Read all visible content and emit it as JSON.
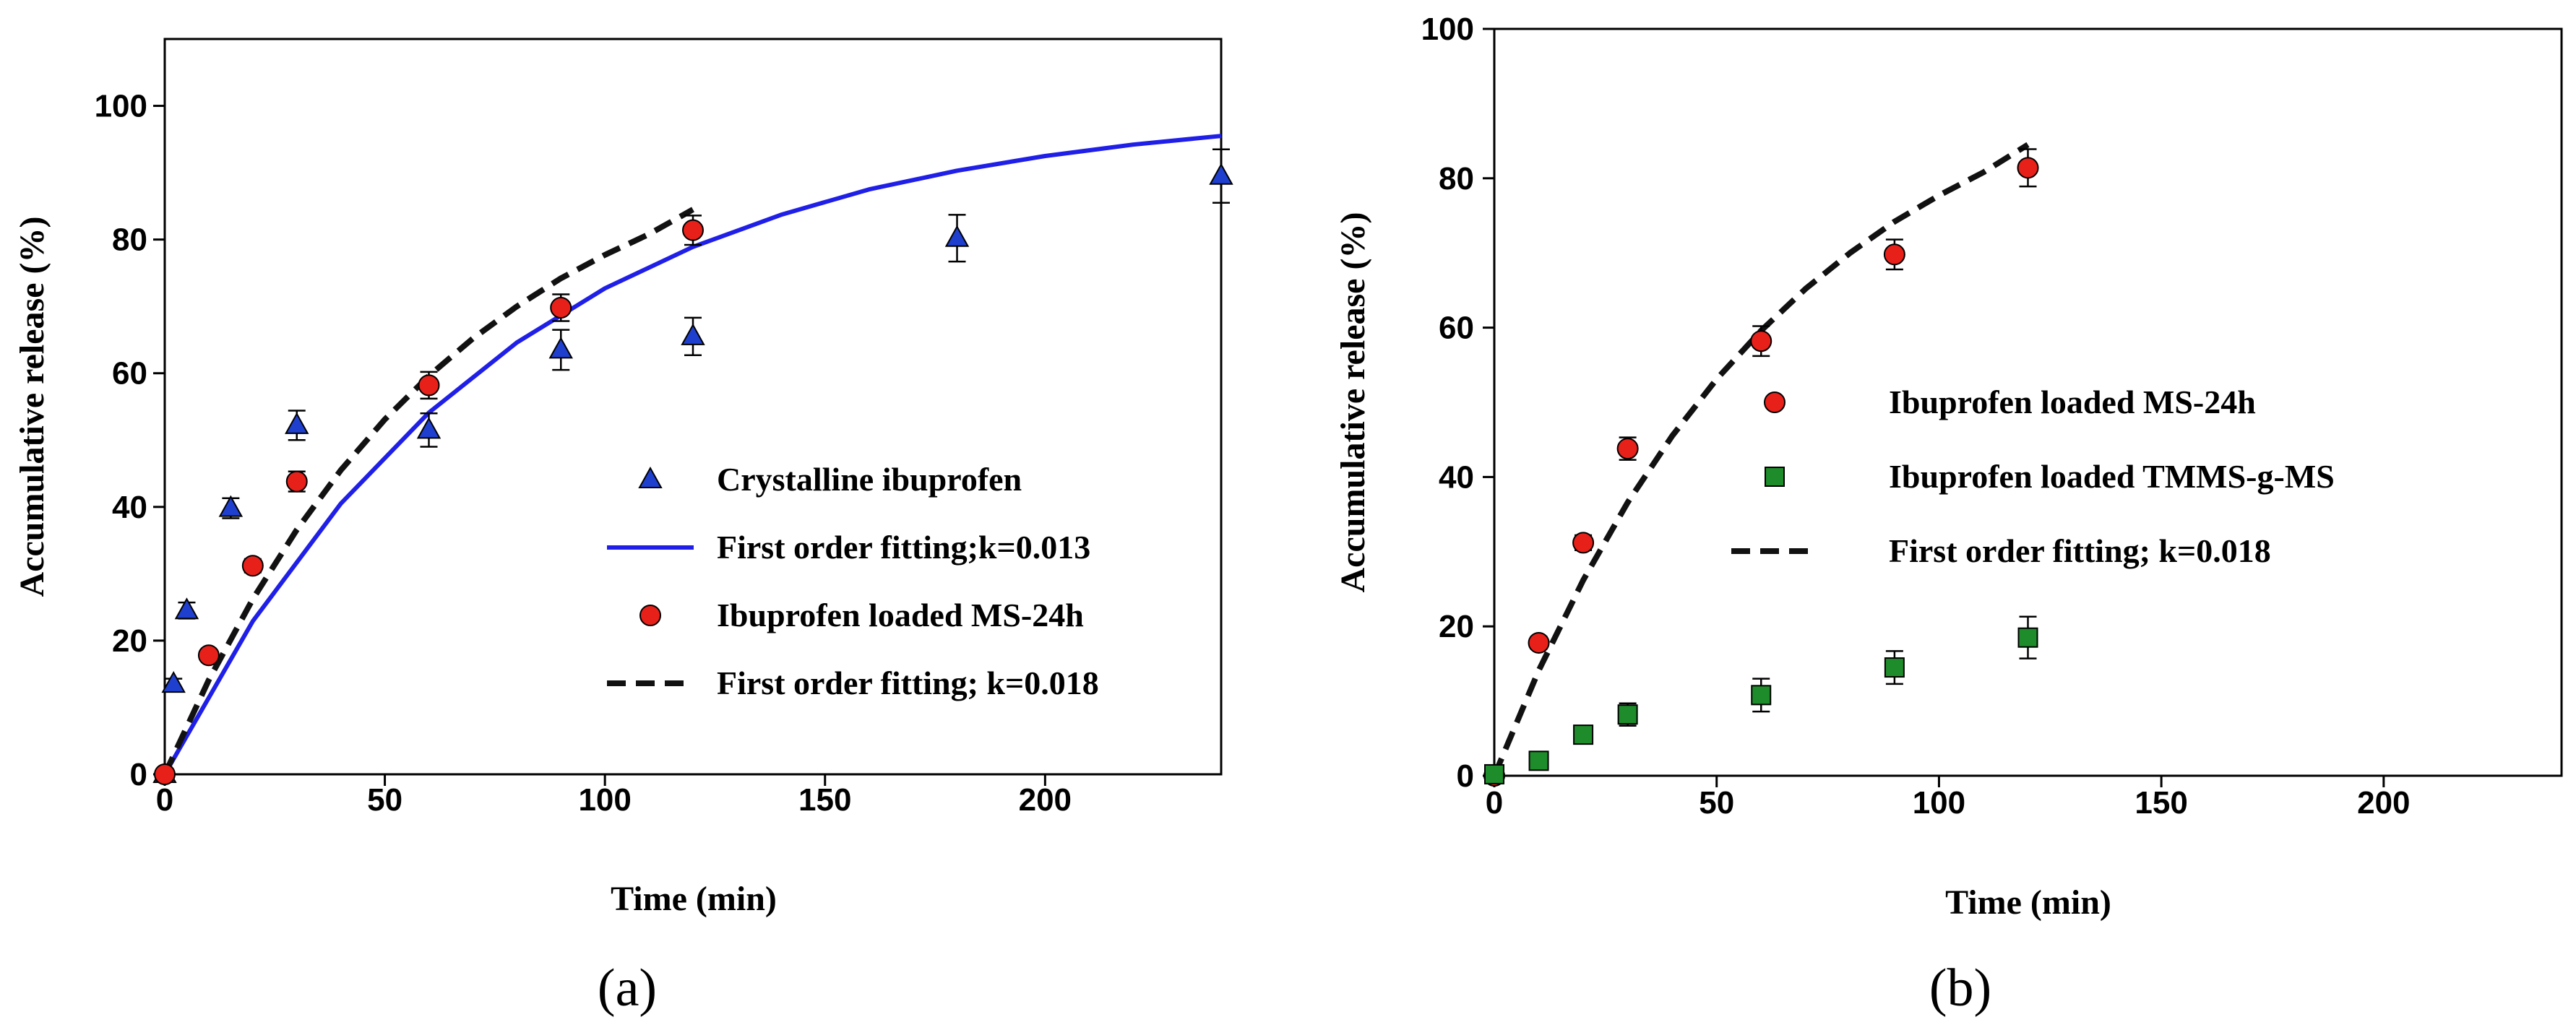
{
  "chart_data": [
    {
      "type": "scatter",
      "panel": "a",
      "caption_letter": "a",
      "xlabel": "Time (min)",
      "ylabel": "Accumulative release (%)",
      "xlim": [
        0,
        240
      ],
      "ylim": [
        0,
        110
      ],
      "xticks": [
        0,
        50,
        100,
        150,
        200
      ],
      "yticks": [
        0,
        20,
        40,
        60,
        80,
        100
      ],
      "legend_position": "center-right",
      "series": [
        {
          "name": "Crystalline ibuprofen",
          "kind": "points",
          "marker": "triangle",
          "color": "#1f3fcf",
          "x": [
            0,
            2,
            5,
            15,
            30,
            60,
            90,
            120,
            180,
            240
          ],
          "y": [
            0,
            13.5,
            24.5,
            39.8,
            52.2,
            51.5,
            63.5,
            65.5,
            80.2,
            89.5
          ],
          "err": [
            0,
            0.8,
            1.2,
            1.5,
            2.2,
            2.5,
            3.0,
            2.8,
            3.5,
            4.0
          ]
        },
        {
          "name": "First order fitting;k=0.013",
          "kind": "curve",
          "style": "solid",
          "color": "#1f1fe8",
          "x": [
            0,
            20,
            40,
            60,
            80,
            100,
            120,
            140,
            160,
            180,
            200,
            220,
            240
          ],
          "y": [
            0,
            22.9,
            40.5,
            54.1,
            64.6,
            72.7,
            78.9,
            83.7,
            87.5,
            90.3,
            92.5,
            94.2,
            95.5
          ]
        },
        {
          "name": "Ibuprofen loaded MS-24h",
          "kind": "points",
          "marker": "circle",
          "color": "#e8201a",
          "x": [
            0,
            10,
            20,
            30,
            60,
            90,
            120
          ],
          "y": [
            0,
            17.8,
            31.2,
            43.8,
            58.2,
            69.8,
            81.4
          ],
          "err": [
            0,
            0.8,
            1.0,
            1.5,
            2.0,
            2.0,
            2.2
          ]
        },
        {
          "name": "First order fitting; k=0.018",
          "kind": "curve",
          "style": "dashed",
          "color": "#111111",
          "x": [
            0,
            10,
            20,
            30,
            40,
            50,
            60,
            70,
            80,
            90,
            100,
            110,
            120
          ],
          "y": [
            0,
            14.1,
            26.2,
            36.6,
            45.5,
            53.1,
            59.6,
            65.2,
            70.0,
            74.2,
            77.7,
            80.8,
            84.5
          ]
        }
      ]
    },
    {
      "type": "scatter",
      "panel": "b",
      "caption_letter": "b",
      "xlabel": "Time (min)",
      "ylabel": "Accumulative release (%)",
      "xlim": [
        0,
        240
      ],
      "ylim": [
        0,
        100
      ],
      "xticks": [
        0,
        50,
        100,
        150,
        200
      ],
      "yticks": [
        0,
        20,
        40,
        60,
        80,
        100
      ],
      "legend_position": "center-right",
      "series": [
        {
          "name": "Ibuprofen loaded MS-24h",
          "kind": "points",
          "marker": "circle",
          "color": "#e8201a",
          "x": [
            0,
            10,
            20,
            30,
            60,
            90,
            120
          ],
          "y": [
            0,
            17.8,
            31.2,
            43.8,
            58.2,
            69.8,
            81.4
          ],
          "err": [
            0,
            0.8,
            1.0,
            1.5,
            2.0,
            2.0,
            2.5
          ]
        },
        {
          "name": "Ibuprofen loaded TMMS-g-MS",
          "kind": "points",
          "marker": "square",
          "color": "#1e8c2a",
          "x": [
            0,
            10,
            20,
            30,
            60,
            90,
            120
          ],
          "y": [
            0.2,
            2.0,
            5.5,
            8.2,
            10.8,
            14.5,
            18.5
          ],
          "err": [
            0,
            0.3,
            0.5,
            1.5,
            2.2,
            2.2,
            2.8
          ]
        },
        {
          "name": "First order fitting; k=0.018",
          "kind": "curve",
          "style": "dashed",
          "color": "#111111",
          "x": [
            0,
            10,
            20,
            30,
            40,
            50,
            60,
            70,
            80,
            90,
            100,
            110,
            120
          ],
          "y": [
            0,
            14.1,
            26.2,
            36.6,
            45.5,
            53.1,
            59.6,
            65.2,
            70.0,
            74.2,
            77.7,
            80.8,
            84.5
          ]
        }
      ]
    }
  ]
}
